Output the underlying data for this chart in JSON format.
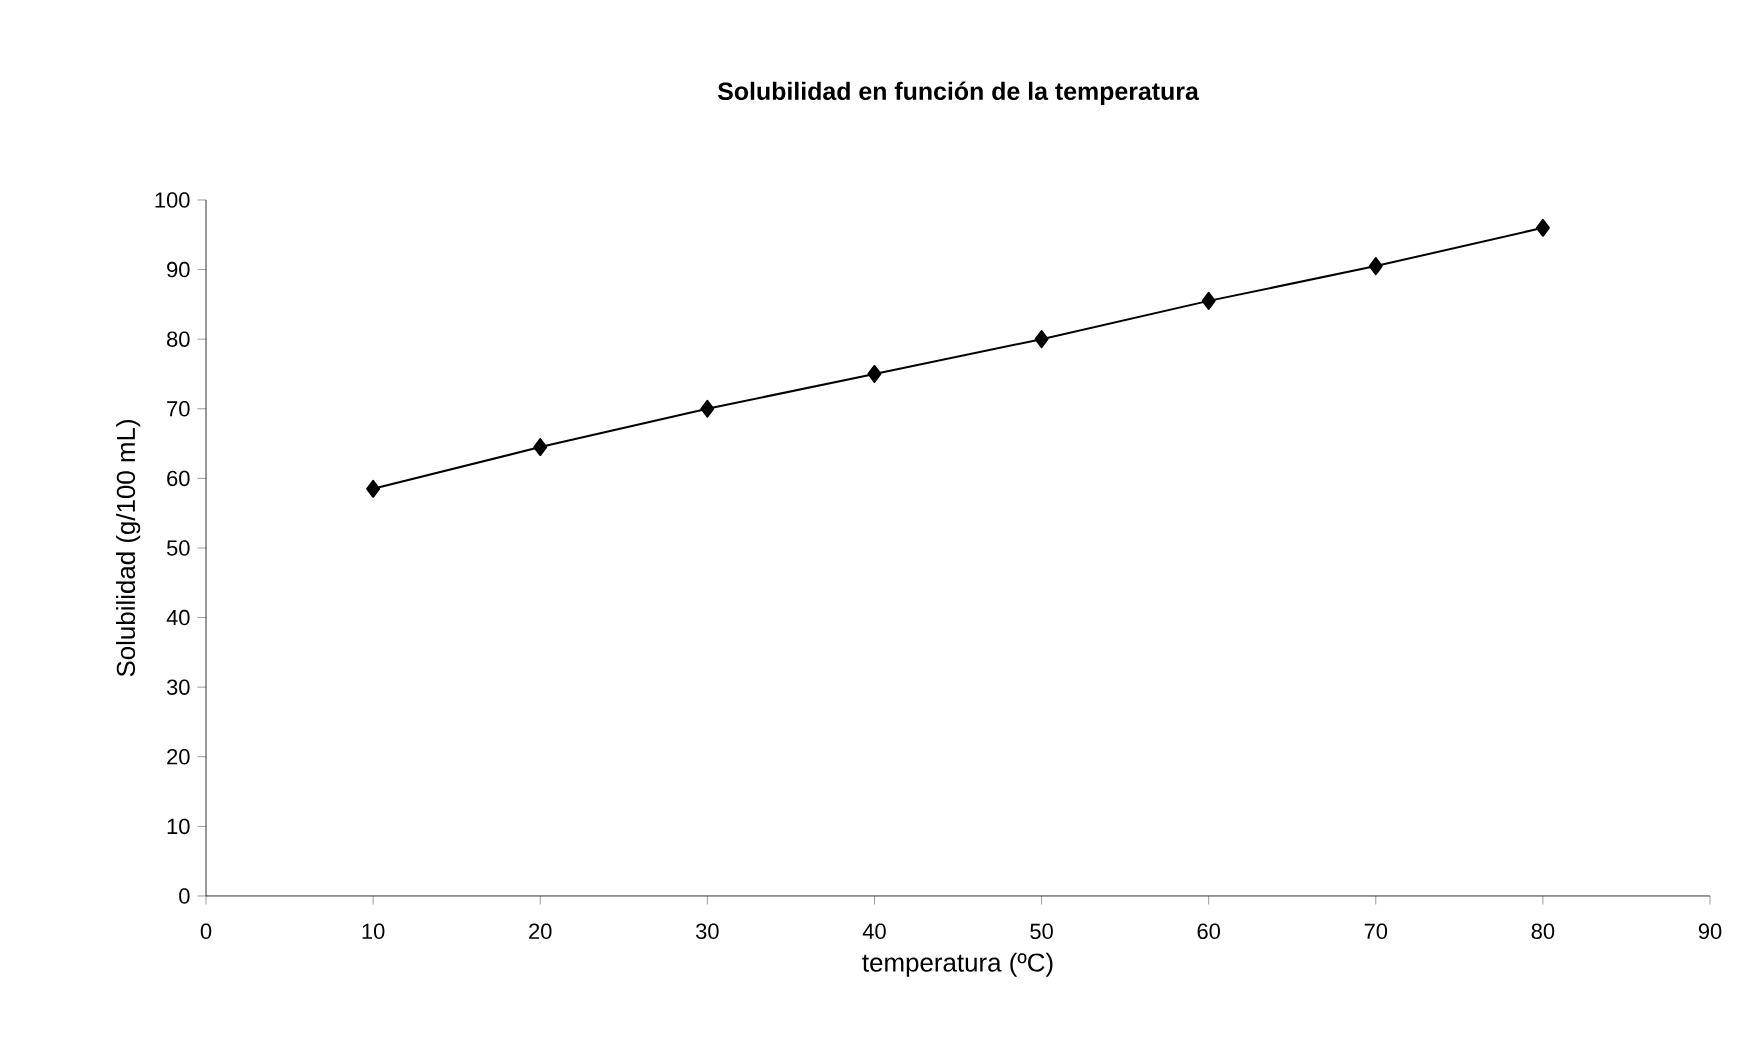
{
  "chart_data": {
    "type": "line",
    "title": "Solubilidad en función de la temperatura",
    "xlabel": "temperatura (ºC)",
    "ylabel": "Solubilidad (g/100 mL)",
    "x": [
      10,
      20,
      30,
      40,
      50,
      60,
      70,
      80
    ],
    "series": [
      {
        "color": "#000000",
        "values": [
          58.5,
          64.5,
          70,
          75,
          80,
          85.5,
          90.5,
          96
        ]
      }
    ],
    "xlim": [
      0,
      90
    ],
    "xticks": [
      0,
      10,
      20,
      30,
      40,
      50,
      60,
      70,
      80,
      90
    ],
    "ylim": [
      0,
      100
    ],
    "yticks": [
      0,
      10,
      20,
      30,
      40,
      50,
      60,
      70,
      80,
      90,
      100
    ],
    "marker": "diamond",
    "line_style": "solid"
  }
}
